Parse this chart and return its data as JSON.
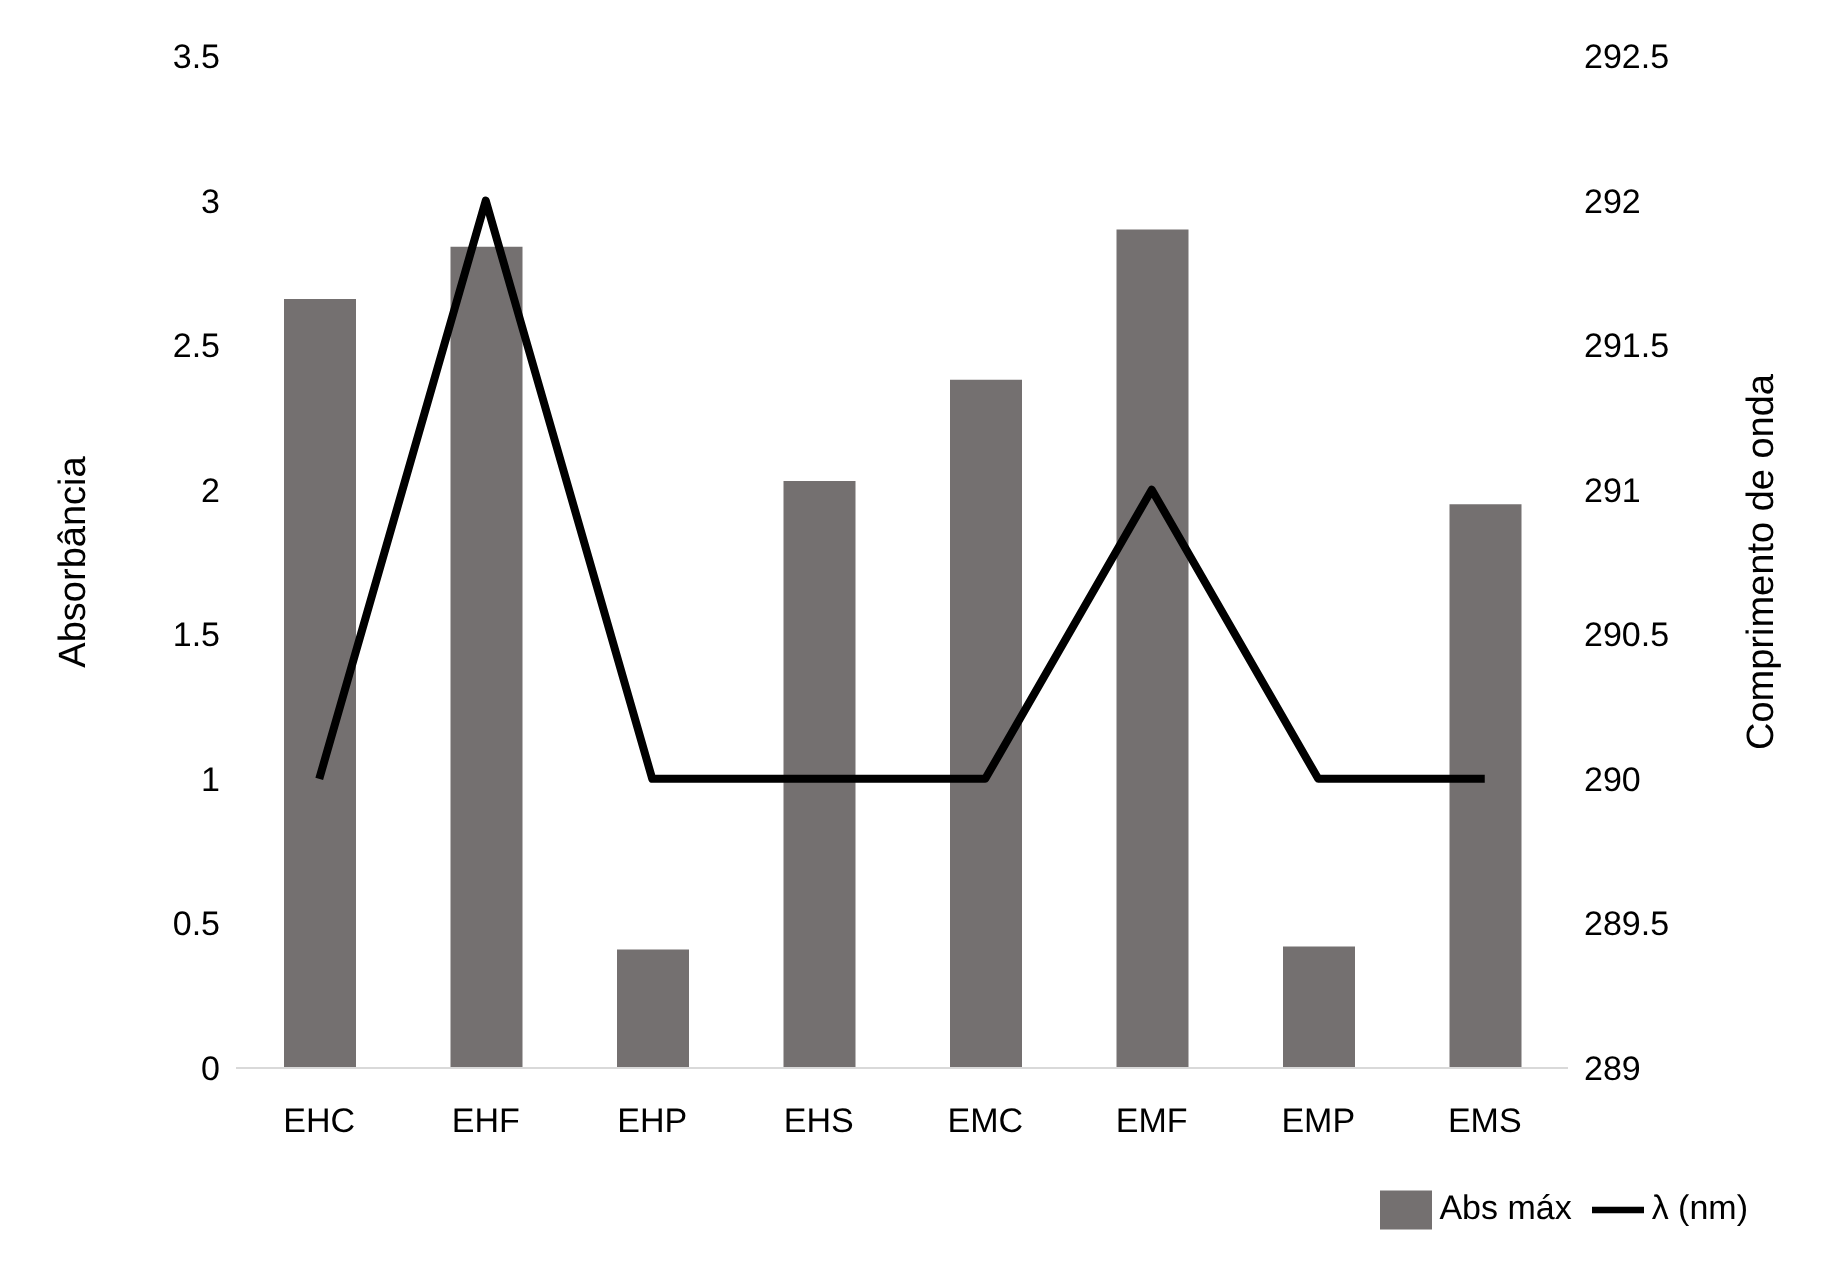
{
  "chart_data": {
    "type": "bar",
    "categories": [
      "EHC",
      "EHF",
      "EHP",
      "EHS",
      "EMC",
      "EMF",
      "EMP",
      "EMS"
    ],
    "ylabel": "Absorbância",
    "y2label": "Comprimento de onda",
    "ylim": [
      0,
      3.5
    ],
    "yticks": [
      0,
      0.5,
      1,
      1.5,
      2,
      2.5,
      3,
      3.5
    ],
    "y2lim": [
      289,
      292.5
    ],
    "y2ticks": [
      289,
      289.5,
      290,
      290.5,
      291,
      291.5,
      292,
      292.5
    ],
    "series": [
      {
        "name": "Abs máx",
        "color": "#747070",
        "values": [
          2.66,
          2.84,
          0.41,
          2.03,
          2.38,
          2.9,
          0.42,
          1.95
        ]
      },
      {
        "name": "λ (nm)",
        "type": "line",
        "axis": "y2",
        "color": "#000000",
        "values": [
          290,
          292,
          290,
          290,
          290,
          291,
          290,
          290
        ]
      }
    ],
    "grid": false,
    "legend": "bottom right",
    "marker": "none"
  }
}
